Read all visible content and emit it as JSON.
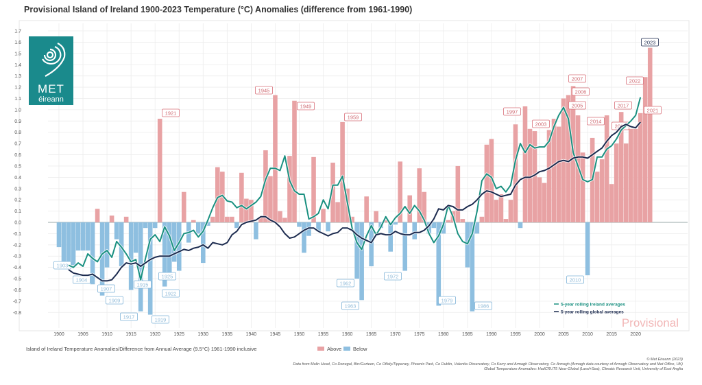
{
  "chart_data": {
    "type": "bar",
    "title": "Provisional Island of Ireland 1900-2023 Temperature (°C) Anomalies (difference from 1961-1990)",
    "xlabel": "",
    "ylabel": "",
    "xlim": [
      1900,
      2023
    ],
    "ylim": [
      -0.8,
      1.7
    ],
    "grid": true,
    "x_ticks": [
      "1900",
      "1905",
      "1910",
      "1915",
      "1920",
      "1925",
      "1930",
      "1935",
      "1940",
      "1945",
      "1950",
      "1955",
      "1960",
      "1965",
      "1970",
      "1975",
      "1980",
      "1985",
      "1990",
      "1995",
      "2000",
      "2005",
      "2010",
      "2015",
      "2020"
    ],
    "y_ticks": [
      "1.7",
      "1.6",
      "1.5",
      "1.4",
      "1.3",
      "1.2",
      "1.1",
      "1.0",
      "0.9",
      "0.8",
      "0.7",
      "0.6",
      "0.5",
      "0.4",
      "0.3",
      "0.2",
      "0.1",
      "0.0",
      "-0.1",
      "-0.2",
      "-0.3",
      "-0.4",
      "-0.5",
      "-0.6",
      "-0.7",
      "-0.8"
    ],
    "bars": {
      "start_year": 1900,
      "values": [
        -0.22,
        -0.35,
        -0.35,
        -0.38,
        -0.25,
        -0.25,
        -0.25,
        -0.55,
        0.12,
        -0.65,
        -0.4,
        0.06,
        -0.15,
        -0.39,
        0.05,
        -0.6,
        -0.27,
        -0.79,
        -0.05,
        -0.82,
        -0.05,
        0.92,
        -0.57,
        -0.45,
        -0.35,
        -0.43,
        0.27,
        -0.18,
        0.02,
        -0.1,
        -0.36,
        -0.03,
        0.05,
        0.49,
        0.45,
        0.05,
        0.05,
        -0.05,
        0.44,
        0.21,
        0.2,
        -0.15,
        0.05,
        0.64,
        0.41,
        1.13,
        0.1,
        0.04,
        0.59,
        1.08,
        -0.04,
        -0.27,
        -0.12,
        0.58,
        -0.08,
        0.12,
        -0.08,
        0.53,
        0.18,
        0.89,
        0.3,
        0.05,
        -0.5,
        -0.69,
        0.23,
        -0.39,
        0.1,
        -0.05,
        0.02,
        -0.26,
        -0.02,
        0.54,
        -0.43,
        0.24,
        -0.15,
        0.48,
        0.27,
        -0.1,
        -0.05,
        -0.74,
        -0.1,
        0.02,
        0.1,
        0.5,
        0.03,
        -0.4,
        -0.79,
        -0.1,
        0.05,
        0.69,
        0.74,
        0.2,
        0.25,
        0.03,
        0.2,
        0.87,
        -0.05,
        1.03,
        0.83,
        0.81,
        0.4,
        0.35,
        0.82,
        0.92,
        0.85,
        1.1,
        1.13,
        1.21,
        0.95,
        0.62,
        -0.47,
        0.75,
        0.45,
        0.56,
        0.95,
        0.34,
        0.7,
        0.98,
        0.7,
        0.83,
        0.83,
        0.97,
        1.29,
        1.55
      ]
    },
    "series": [
      {
        "name": "5-year rolling Ireland averages",
        "color": "#1a9080",
        "start_year": 1902,
        "values": [
          -0.38,
          -0.4,
          -0.36,
          -0.39,
          -0.28,
          -0.32,
          -0.35,
          -0.28,
          -0.25,
          -0.31,
          -0.17,
          -0.22,
          -0.28,
          -0.35,
          -0.33,
          -0.51,
          -0.32,
          -0.15,
          -0.11,
          -0.17,
          -0.04,
          -0.12,
          -0.25,
          -0.18,
          -0.1,
          -0.09,
          -0.07,
          -0.13,
          -0.08,
          0.02,
          0.13,
          0.22,
          0.24,
          0.19,
          0.18,
          0.13,
          0.15,
          0.12,
          0.15,
          0.18,
          0.23,
          0.38,
          0.48,
          0.48,
          0.46,
          0.59,
          0.37,
          0.28,
          0.25,
          0.25,
          0.03,
          0.05,
          0.08,
          0.2,
          0.12,
          0.33,
          0.33,
          0.41,
          0.18,
          -0.05,
          -0.18,
          -0.24,
          -0.12,
          -0.03,
          -0.11,
          -0.04,
          0.05,
          -0.02,
          0.04,
          0.08,
          0.14,
          0.08,
          0.15,
          0.1,
          0.02,
          -0.1,
          -0.18,
          -0.12,
          -0.02,
          0.15,
          0.05,
          -0.1,
          -0.17,
          -0.19,
          -0.1,
          0.1,
          0.37,
          0.43,
          0.4,
          0.3,
          0.32,
          0.27,
          0.33,
          0.55,
          0.7,
          0.62,
          0.69,
          0.66,
          0.67,
          0.67,
          0.72,
          0.85,
          0.95,
          1.02,
          0.92,
          0.62,
          0.5,
          0.38,
          0.36,
          0.38,
          0.58,
          0.58,
          0.65,
          0.68,
          0.74,
          0.82,
          0.86,
          0.9,
          0.95,
          1.11
        ]
      },
      {
        "name": "5-year rolling global averages",
        "color": "#1b2a4e",
        "start_year": 1902,
        "values": [
          -0.42,
          -0.45,
          -0.46,
          -0.47,
          -0.47,
          -0.46,
          -0.49,
          -0.52,
          -0.52,
          -0.51,
          -0.46,
          -0.4,
          -0.36,
          -0.37,
          -0.36,
          -0.39,
          -0.36,
          -0.33,
          -0.31,
          -0.3,
          -0.3,
          -0.3,
          -0.28,
          -0.26,
          -0.24,
          -0.25,
          -0.23,
          -0.22,
          -0.2,
          -0.23,
          -0.18,
          -0.19,
          -0.2,
          -0.18,
          -0.11,
          -0.08,
          -0.02,
          0.0,
          0.01,
          0.02,
          0.05,
          0.05,
          0.02,
          0.0,
          -0.04,
          -0.1,
          -0.14,
          -0.13,
          -0.1,
          -0.07,
          -0.05,
          -0.05,
          -0.08,
          -0.1,
          -0.12,
          -0.1,
          -0.09,
          -0.05,
          -0.05,
          -0.07,
          -0.11,
          -0.14,
          -0.16,
          -0.18,
          -0.11,
          -0.1,
          -0.11,
          -0.11,
          -0.08,
          -0.1,
          -0.11,
          -0.11,
          -0.09,
          -0.09,
          -0.07,
          -0.03,
          0.03,
          0.12,
          0.11,
          0.15,
          0.14,
          0.11,
          0.11,
          0.14,
          0.16,
          0.2,
          0.25,
          0.28,
          0.27,
          0.25,
          0.23,
          0.24,
          0.25,
          0.33,
          0.38,
          0.4,
          0.4,
          0.42,
          0.45,
          0.46,
          0.48,
          0.51,
          0.54,
          0.55,
          0.54,
          0.57,
          0.58,
          0.58,
          0.57,
          0.6,
          0.63,
          0.66,
          0.72,
          0.77,
          0.8,
          0.85,
          0.87,
          0.85,
          0.84,
          0.89
        ]
      }
    ],
    "annotations": [
      "1903",
      "1904",
      "1907",
      "1909",
      "1915",
      "1917",
      "1919",
      "1921",
      "1922",
      "1925",
      "1945",
      "1949",
      "1959",
      "1962",
      "1963",
      "1972",
      "1979",
      "1986",
      "1997",
      "2003",
      "2005",
      "2006",
      "2007",
      "2010",
      "2014",
      "2017",
      "2018",
      "2021",
      "2022",
      "2023"
    ],
    "legend": {
      "placement": "bottom-left",
      "description": "Island of Ireland Temperature Anomalies/Difference from Annual Average (9.5°C) 1961-1990 inclusive",
      "above_label": "Above",
      "below_label": "Below",
      "above_color": "#e8a2a4",
      "below_color": "#8ebfe0"
    },
    "lines_legend_placement": "bottom-right",
    "watermark": "Provisional"
  },
  "logo": {
    "line1": "MET",
    "line2": "éireann",
    "color": "#1a8a8c"
  },
  "credits": {
    "copyright": "© Met Éireann (2023)",
    "data_source": "Data from Malin Head, Co Donegal, Birr/Gurteen, Co Offaly/Tipperary, Phoenix Park, Co Dublin, Valentia Observatory, Co Kerry and Armagh Observatory, Co Armagh (Armagh data courtesy of Armagh Observatory and Met Office, UK)",
    "global_source": "Global Temperature Anomalies: HadCRUT5 Near-Global (Land+Sea), Climatic Research Unit, University of East Anglia"
  }
}
